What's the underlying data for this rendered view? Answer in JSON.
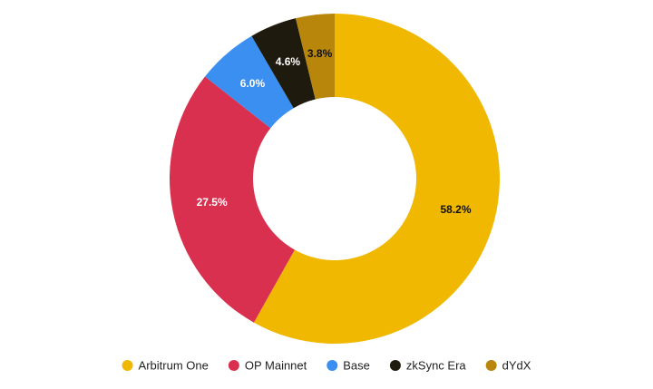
{
  "chart_data": {
    "type": "donut",
    "categories": [
      "Arbitrum One",
      "OP Mainnet",
      "Base",
      "zkSync Era",
      "dYdX"
    ],
    "values": [
      58.2,
      27.5,
      6.0,
      4.6,
      3.8
    ],
    "value_labels": [
      "58.2%",
      "27.5%",
      "6.0%",
      "4.6%",
      "3.8%"
    ],
    "colors": [
      "#f0b800",
      "#d9304f",
      "#3a8ff0",
      "#1f1a0e",
      "#b8860b"
    ],
    "legend": "bottom"
  }
}
